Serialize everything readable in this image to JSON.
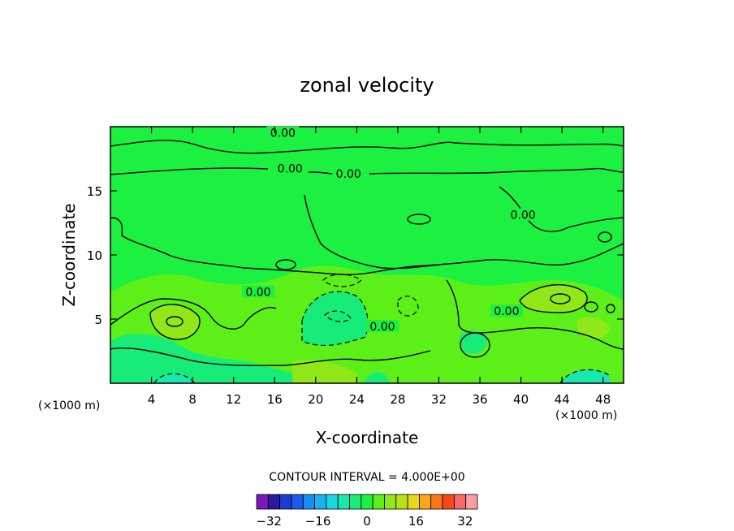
{
  "chart_data": {
    "type": "heatmap",
    "subtype": "filled-contour",
    "title": "zonal velocity",
    "xlabel": "X-coordinate",
    "ylabel": "Z-coordinate",
    "x_unit": "(×1000 m)",
    "x_unit_right": "(×1000 m)",
    "xlim": [
      0,
      50
    ],
    "ylim": [
      0,
      20
    ],
    "xticks": [
      4,
      8,
      12,
      16,
      20,
      24,
      28,
      32,
      36,
      40,
      44,
      48
    ],
    "yticks": [
      5,
      10,
      15
    ],
    "contour_interval_text": "CONTOUR INTERVAL = 4.000E+00",
    "contour_labels": [
      {
        "text": "0.00",
        "x": 16.8,
        "y": 19.4
      },
      {
        "text": "0.00",
        "x": 17.5,
        "y": 16.6
      },
      {
        "text": "0.00",
        "x": 23.2,
        "y": 16.2
      },
      {
        "text": "0.00",
        "x": 40.2,
        "y": 13.0
      },
      {
        "text": "0.00",
        "x": 14.4,
        "y": 7.0
      },
      {
        "text": "0.00",
        "x": 38.6,
        "y": 5.5
      },
      {
        "text": "0.00",
        "x": 26.5,
        "y": 4.3
      }
    ],
    "colorbar": {
      "levels": [
        -36,
        -32,
        -28,
        -24,
        -20,
        -16,
        -12,
        -8,
        -4,
        0,
        4,
        8,
        12,
        16,
        20,
        24,
        28,
        32,
        36
      ],
      "tick_labels": [
        "-32",
        "-16",
        "0",
        "16",
        "32"
      ],
      "tick_values": [
        -32,
        -16,
        0,
        16,
        32
      ],
      "colors": [
        "#7a18b8",
        "#2b1aa0",
        "#1e3ad0",
        "#1a5cf0",
        "#1a8cf8",
        "#18b4f0",
        "#18d8e0",
        "#18e8b0",
        "#18ec78",
        "#1cf040",
        "#5cf018",
        "#90e818",
        "#b8e018",
        "#e8d818",
        "#f8a818",
        "#f87818",
        "#f84818",
        "#f86868",
        "#f8a0a0"
      ]
    },
    "grid": false,
    "legend": "colorbar-bottom"
  }
}
